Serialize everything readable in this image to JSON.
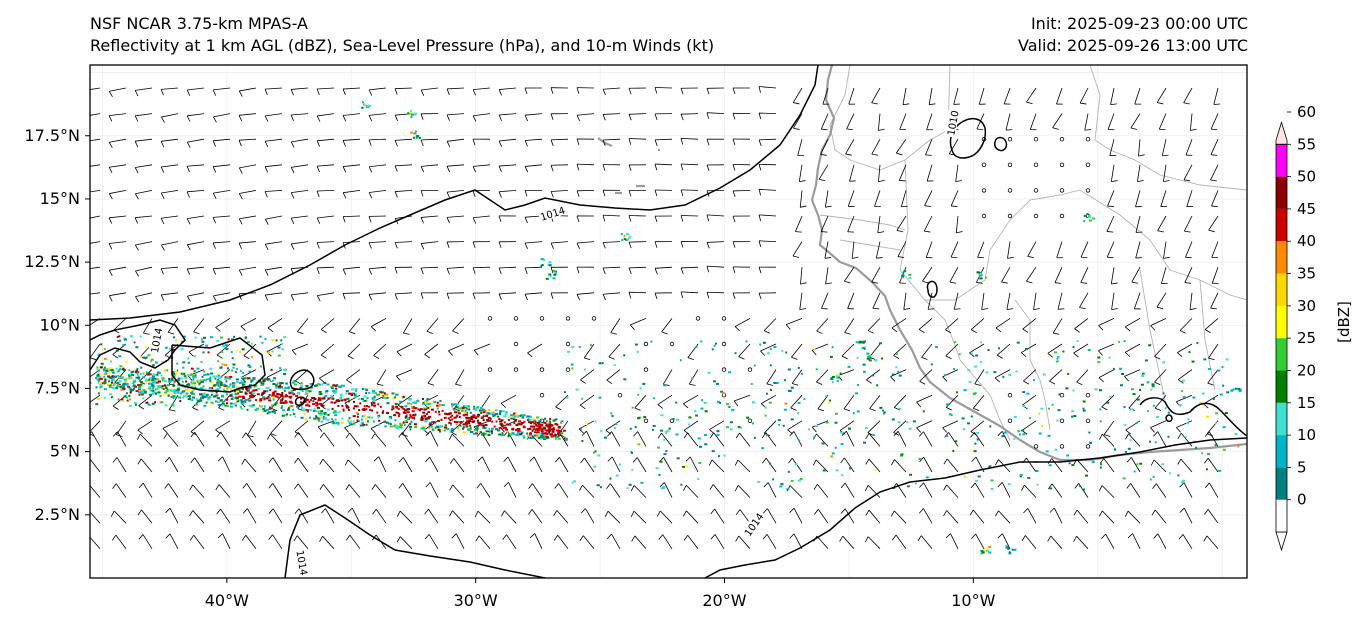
{
  "header": {
    "model_line": "NSF NCAR 3.75-km MPAS-A",
    "fields_line": "Reflectivity at 1 km AGL (dBZ), Sea-Level Pressure (hPa), and 10-m Winds (kt)",
    "init_line": "Init: 2025-09-23 00:00 UTC",
    "valid_line": "Valid: 2025-09-26 13:00 UTC"
  },
  "map": {
    "lon_min": -45.5,
    "lon_max": 1.0,
    "lat_min": 0.0,
    "lat_max": 20.3,
    "lat_ticks": [
      {
        "value": 2.5,
        "label": "2.5°N"
      },
      {
        "value": 5,
        "label": "5°N"
      },
      {
        "value": 7.5,
        "label": "7.5°N"
      },
      {
        "value": 10,
        "label": "10°N"
      },
      {
        "value": 12.5,
        "label": "12.5°N"
      },
      {
        "value": 15,
        "label": "15°N"
      },
      {
        "value": 17.5,
        "label": "17.5°N"
      }
    ],
    "lon_ticks": [
      {
        "value": -40,
        "label": "40°W"
      },
      {
        "value": -30,
        "label": "30°W"
      },
      {
        "value": -20,
        "label": "20°W"
      },
      {
        "value": -10,
        "label": "10°W"
      }
    ],
    "contour_labels": [
      {
        "text": "1014",
        "lon": -26.9,
        "lat": 14.4,
        "angle": -18
      },
      {
        "text": "1014",
        "lon": -18.8,
        "lat": 2.1,
        "angle": -55
      },
      {
        "text": "1014",
        "lon": -37.0,
        "lat": 0.6,
        "angle": 80
      },
      {
        "text": "1014",
        "lon": -42.8,
        "lat": 9.4,
        "angle": -80
      },
      {
        "text": "1010",
        "lon": -10.8,
        "lat": 18.0,
        "angle": -80
      }
    ]
  },
  "colorbar": {
    "unit_label": "[dBZ]",
    "ticks": [
      "0",
      "5",
      "10",
      "15",
      "20",
      "25",
      "30",
      "35",
      "40",
      "45",
      "50",
      "55",
      "60"
    ],
    "colors": [
      "#008080",
      "#00b4c8",
      "#40e0d0",
      "#008000",
      "#32cd32",
      "#ffff00",
      "#ffd700",
      "#ff8c00",
      "#cc0000",
      "#8b0000",
      "#ff00ff",
      "#ffe4e1"
    ]
  }
}
